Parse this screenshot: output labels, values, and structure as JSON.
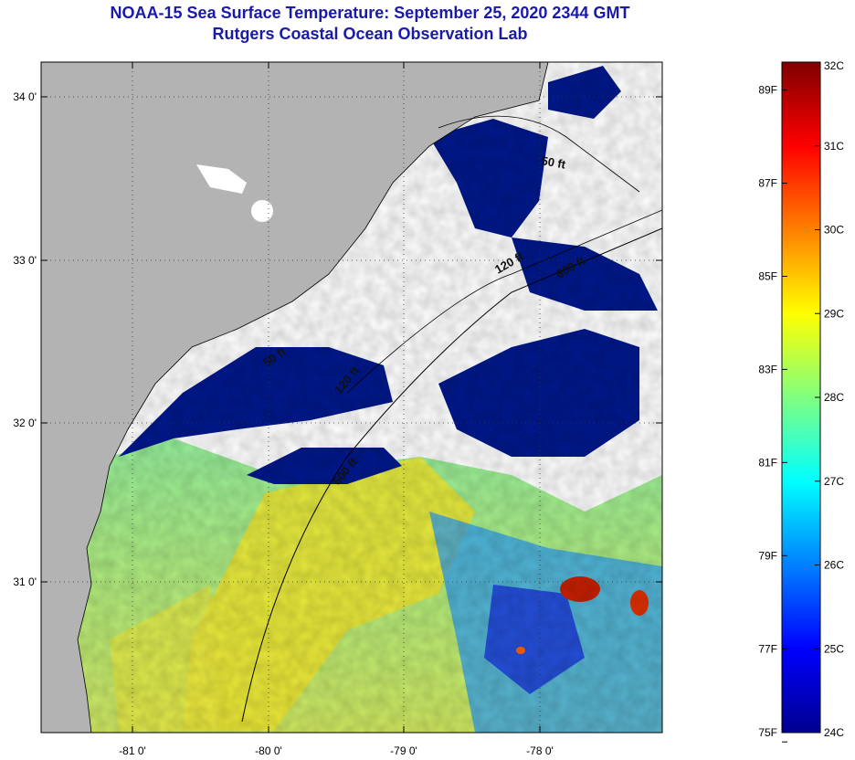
{
  "header": {
    "title_line1": "NOAA-15 Sea Surface Temperature:  September 25, 2020 2344 GMT",
    "title_line2": "Rutgers Coastal Ocean Observation Lab"
  },
  "map": {
    "lon_ticks": [
      "-81 0'",
      "-80 0'",
      "-79 0'",
      "-78 0'"
    ],
    "lat_ticks": [
      "34 0'",
      "33 0'",
      "32 0'",
      "31 0'"
    ],
    "contour_labels": [
      "50 ft",
      "120 ft",
      "600 ft",
      "50 ft",
      "120 ft",
      "600 ft"
    ],
    "colors": {
      "land": "#b3b3b3",
      "cloud": "#ffffff",
      "cold_water": "#00188c"
    }
  },
  "colorbar": {
    "celsius_labels": [
      "32C",
      "31C",
      "30C",
      "29C",
      "28C",
      "27C",
      "26C",
      "25C",
      "24C"
    ],
    "fahrenheit_labels": [
      "89F",
      "87F",
      "85F",
      "83F",
      "81F",
      "79F",
      "77F",
      "75F"
    ],
    "range_c": [
      24,
      32
    ],
    "stops": [
      "#00008f",
      "#0000ff",
      "#0080ff",
      "#00ffff",
      "#80ff80",
      "#ffff00",
      "#ff8000",
      "#ff0000",
      "#800000"
    ]
  }
}
